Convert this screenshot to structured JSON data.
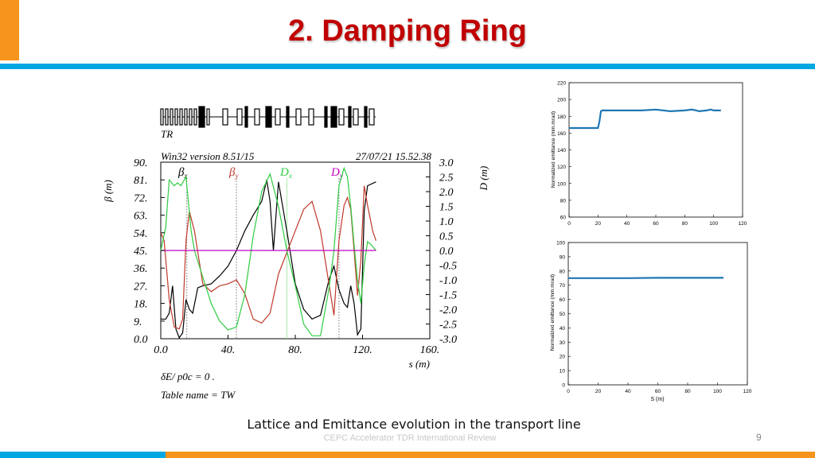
{
  "slide": {
    "title": "2. Damping Ring",
    "caption": "Lattice and Emittance evolution in the transport line",
    "footer": "CEPC Accelerator TDR International Review",
    "page_number": "9",
    "colors": {
      "title": "#c00000",
      "accent": "#00a7e1",
      "orange": "#f7941d"
    }
  },
  "chart_data": [
    {
      "type": "line",
      "lattice_label": "TR",
      "header_left": "Win32 version 8.51/15",
      "header_right": "27/07/21  15.52.38",
      "ylabel_left": "β (m)",
      "ylabel_right": "D (m)",
      "xlabel": "s (m)",
      "footnote_1": "δE/ p0c  =  0 .",
      "footnote_2": "Table name = TW",
      "xlim": [
        0,
        160
      ],
      "ylim_left": [
        0,
        90
      ],
      "ylim_right": [
        -3,
        3
      ],
      "x_ticks": [
        "0.0",
        "40.",
        "80.",
        "120.",
        "160."
      ],
      "y_left_ticks": [
        "0.0",
        "9.",
        "18.",
        "27.",
        "36.",
        "45.",
        "54.",
        "63.",
        "72.",
        "81.",
        "90."
      ],
      "y_right_ticks": [
        "-3.0",
        "-2.5",
        "-2.0",
        "-1.5",
        "-1.0",
        "-0.5",
        "0.0",
        "0.5",
        "1.0",
        "1.5",
        "2.0",
        "2.5",
        "3.0"
      ],
      "legend": [
        {
          "symbol": "β",
          "sub": "x",
          "color": "#000000"
        },
        {
          "symbol": "β",
          "sub": "y",
          "color": "#c0392b"
        },
        {
          "symbol": "D",
          "sub": "x",
          "color": "#2ecc40"
        },
        {
          "symbol": "D",
          "sub": "y",
          "color": "#c000c0"
        }
      ],
      "series": [
        {
          "axis": "left",
          "color": "#000000",
          "x": [
            0,
            3,
            5,
            7,
            9,
            11,
            13,
            15,
            17,
            19,
            22,
            25,
            30,
            35,
            40,
            45,
            50,
            55,
            60,
            63,
            65,
            67,
            70,
            75,
            80,
            85,
            90,
            95,
            100,
            103,
            106,
            109,
            111,
            113,
            115,
            117,
            119,
            121,
            123,
            128
          ],
          "y": [
            10,
            10,
            13,
            27,
            5,
            0.5,
            3,
            20,
            15,
            13,
            26,
            27,
            28,
            32,
            37,
            45,
            55,
            63,
            70,
            81,
            70,
            45,
            80,
            55,
            28,
            15,
            10,
            12,
            30,
            37,
            25,
            18,
            16,
            27,
            18,
            2,
            5,
            65,
            78,
            80
          ]
        },
        {
          "axis": "left",
          "color": "#c0392b",
          "x": [
            0,
            2,
            5,
            8,
            11,
            13,
            15,
            17,
            20,
            25,
            30,
            35,
            40,
            45,
            50,
            55,
            60,
            65,
            70,
            75,
            80,
            85,
            90,
            95,
            100,
            103,
            106,
            109,
            111,
            113,
            115,
            117,
            119,
            121,
            123,
            126,
            128
          ],
          "y": [
            54,
            50,
            20,
            6,
            5,
            10,
            50,
            65,
            55,
            28,
            24,
            27,
            28,
            30,
            23,
            10,
            8,
            13,
            33,
            44,
            55,
            66,
            70,
            55,
            28,
            12,
            50,
            68,
            72,
            66,
            45,
            22,
            40,
            78,
            68,
            55,
            50
          ]
        },
        {
          "axis": "right",
          "color": "#2ecc40",
          "x": [
            0,
            3,
            5,
            8,
            10,
            12,
            15,
            18,
            20,
            25,
            30,
            35,
            40,
            45,
            50,
            55,
            60,
            65,
            70,
            75,
            80,
            85,
            90,
            95,
            100,
            103,
            106,
            109,
            111,
            113,
            115,
            117,
            119,
            121,
            123,
            125,
            128
          ],
          "y": [
            0,
            0.8,
            2.4,
            2.2,
            2.3,
            2.2,
            2.5,
            0.7,
            0,
            -0.9,
            -1.8,
            -2.4,
            -2.7,
            -2.6,
            -1.5,
            0.5,
            2.0,
            2.6,
            1.5,
            0,
            -1.2,
            -2.5,
            -2.9,
            -2.9,
            -1.3,
            0,
            2.2,
            2.8,
            2.5,
            1.5,
            0.2,
            -1.0,
            -1.8,
            -0.5,
            0.3,
            0.2,
            0
          ]
        },
        {
          "axis": "right",
          "color": "#c000c0",
          "x": [
            0,
            128
          ],
          "y": [
            0,
            0
          ]
        }
      ]
    },
    {
      "type": "line",
      "xlabel": "",
      "ylabel": "Normalized emittance (mm.mrad)",
      "xlim": [
        0,
        120
      ],
      "ylim": [
        60,
        220
      ],
      "x_ticks": [
        "0",
        "20",
        "40",
        "60",
        "80",
        "100",
        "120"
      ],
      "y_ticks": [
        "60",
        "80",
        "100",
        "120",
        "140",
        "160",
        "180",
        "200",
        "220"
      ],
      "series": [
        {
          "color": "#1f77b4",
          "x": [
            0,
            20,
            21,
            22,
            23,
            30,
            40,
            50,
            60,
            70,
            80,
            85,
            88,
            90,
            95,
            98,
            100,
            105
          ],
          "y": [
            166,
            166,
            174,
            186,
            187,
            187,
            187,
            187,
            188,
            186,
            187,
            188,
            187,
            186,
            187,
            188,
            187,
            187
          ]
        }
      ]
    },
    {
      "type": "line",
      "xlabel": "S (m)",
      "ylabel": "Normalized emittance (mm.mrad)",
      "xlim": [
        0,
        120
      ],
      "ylim": [
        0,
        100
      ],
      "x_ticks": [
        "0",
        "20",
        "40",
        "60",
        "80",
        "100",
        "120"
      ],
      "y_ticks": [
        "0",
        "10",
        "20",
        "30",
        "40",
        "50",
        "60",
        "70",
        "80",
        "90",
        "100"
      ],
      "series": [
        {
          "color": "#1f77b4",
          "x": [
            0,
            20,
            40,
            60,
            80,
            100,
            104
          ],
          "y": [
            75,
            75,
            75,
            75.2,
            75.2,
            75.2,
            75.2
          ]
        }
      ]
    }
  ]
}
